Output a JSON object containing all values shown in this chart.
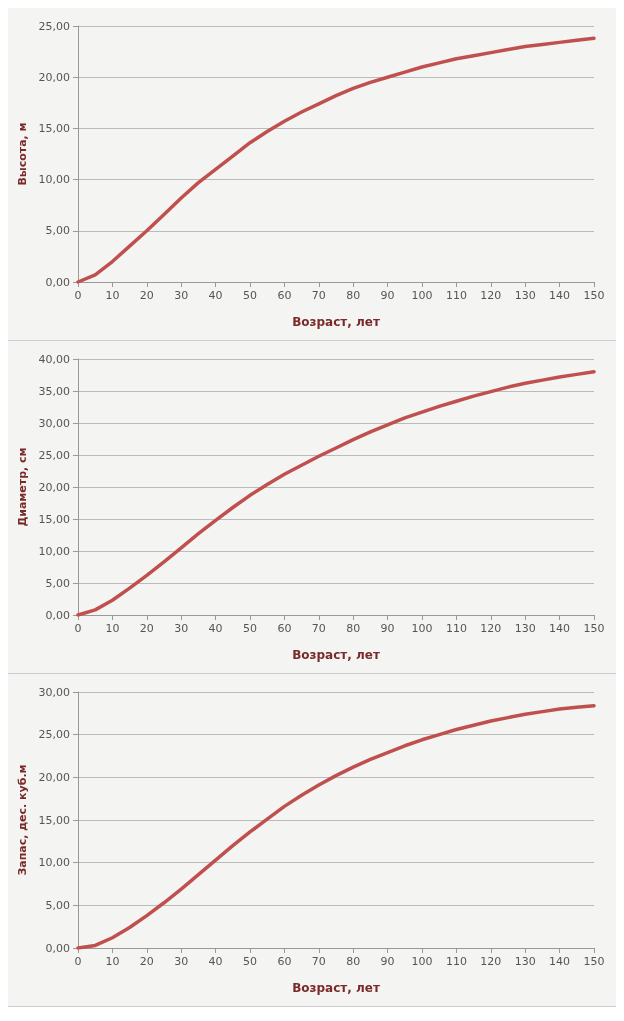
{
  "chart_data": [
    {
      "type": "line",
      "ylabel": "Высота, м",
      "xlabel": "Возраст, лет",
      "x": [
        0,
        5,
        10,
        15,
        20,
        25,
        30,
        35,
        40,
        45,
        50,
        55,
        60,
        65,
        70,
        75,
        80,
        85,
        90,
        95,
        100,
        105,
        110,
        115,
        120,
        125,
        130,
        135,
        140,
        145,
        150
      ],
      "series": [
        {
          "color": "#c0504d",
          "values": [
            0,
            0.7,
            2.0,
            3.5,
            5.0,
            6.6,
            8.2,
            9.7,
            11.0,
            12.3,
            13.6,
            14.7,
            15.7,
            16.6,
            17.4,
            18.2,
            18.9,
            19.5,
            20.0,
            20.5,
            21.0,
            21.4,
            21.8,
            22.1,
            22.4,
            22.7,
            23.0,
            23.2,
            23.4,
            23.6,
            23.8
          ]
        }
      ],
      "xlim": [
        0,
        150
      ],
      "xticks": [
        0,
        10,
        20,
        30,
        40,
        50,
        60,
        70,
        80,
        90,
        100,
        110,
        120,
        130,
        140,
        150
      ],
      "ylim": [
        0,
        25
      ],
      "yticks": [
        {
          "value": 0,
          "label": "0,00"
        },
        {
          "value": 5,
          "label": "5,00"
        },
        {
          "value": 10,
          "label": "10,00"
        },
        {
          "value": 15,
          "label": "15,00"
        },
        {
          "value": 20,
          "label": "20,00"
        },
        {
          "value": 25,
          "label": "25,00"
        }
      ],
      "grid": "y",
      "marker": "none",
      "line_style": "solid"
    },
    {
      "type": "line",
      "ylabel": "Диаметр, см",
      "xlabel": "Возраст, лет",
      "x": [
        0,
        5,
        10,
        15,
        20,
        25,
        30,
        35,
        40,
        45,
        50,
        55,
        60,
        65,
        70,
        75,
        80,
        85,
        90,
        95,
        100,
        105,
        110,
        115,
        120,
        125,
        130,
        135,
        140,
        145,
        150
      ],
      "series": [
        {
          "color": "#c0504d",
          "values": [
            0,
            0.8,
            2.3,
            4.2,
            6.2,
            8.3,
            10.5,
            12.7,
            14.8,
            16.8,
            18.7,
            20.4,
            22.0,
            23.4,
            24.8,
            26.1,
            27.4,
            28.6,
            29.7,
            30.8,
            31.7,
            32.6,
            33.4,
            34.2,
            34.9,
            35.6,
            36.2,
            36.7,
            37.2,
            37.6,
            38.0
          ]
        }
      ],
      "xlim": [
        0,
        150
      ],
      "xticks": [
        0,
        10,
        20,
        30,
        40,
        50,
        60,
        70,
        80,
        90,
        100,
        110,
        120,
        130,
        140,
        150
      ],
      "ylim": [
        0,
        40
      ],
      "yticks": [
        {
          "value": 0,
          "label": "0,00"
        },
        {
          "value": 5,
          "label": "5,00"
        },
        {
          "value": 10,
          "label": "10,00"
        },
        {
          "value": 15,
          "label": "15,00"
        },
        {
          "value": 20,
          "label": "20,00"
        },
        {
          "value": 25,
          "label": "25,00"
        },
        {
          "value": 30,
          "label": "30,00"
        },
        {
          "value": 35,
          "label": "35,00"
        },
        {
          "value": 40,
          "label": "40,00"
        }
      ],
      "grid": "y",
      "marker": "none",
      "line_style": "solid"
    },
    {
      "type": "line",
      "ylabel": "Запас, дес. куб.м",
      "xlabel": "Возраст, лет",
      "x": [
        0,
        5,
        10,
        15,
        20,
        25,
        30,
        35,
        40,
        45,
        50,
        55,
        60,
        65,
        70,
        75,
        80,
        85,
        90,
        95,
        100,
        105,
        110,
        115,
        120,
        125,
        130,
        135,
        140,
        145,
        150
      ],
      "series": [
        {
          "color": "#c0504d",
          "values": [
            0,
            0.3,
            1.2,
            2.4,
            3.8,
            5.3,
            6.9,
            8.6,
            10.3,
            12.0,
            13.6,
            15.1,
            16.6,
            17.9,
            19.1,
            20.2,
            21.2,
            22.1,
            22.9,
            23.7,
            24.4,
            25.0,
            25.6,
            26.1,
            26.6,
            27.0,
            27.4,
            27.7,
            28.0,
            28.2,
            28.4
          ]
        }
      ],
      "xlim": [
        0,
        150
      ],
      "xticks": [
        0,
        10,
        20,
        30,
        40,
        50,
        60,
        70,
        80,
        90,
        100,
        110,
        120,
        130,
        140,
        150
      ],
      "ylim": [
        0,
        30
      ],
      "yticks": [
        {
          "value": 0,
          "label": "0,00"
        },
        {
          "value": 5,
          "label": "5,00"
        },
        {
          "value": 10,
          "label": "10,00"
        },
        {
          "value": 15,
          "label": "15,00"
        },
        {
          "value": 20,
          "label": "20,00"
        },
        {
          "value": 25,
          "label": "25,00"
        },
        {
          "value": 30,
          "label": "30,00"
        }
      ],
      "grid": "y",
      "marker": "none",
      "line_style": "solid"
    }
  ]
}
